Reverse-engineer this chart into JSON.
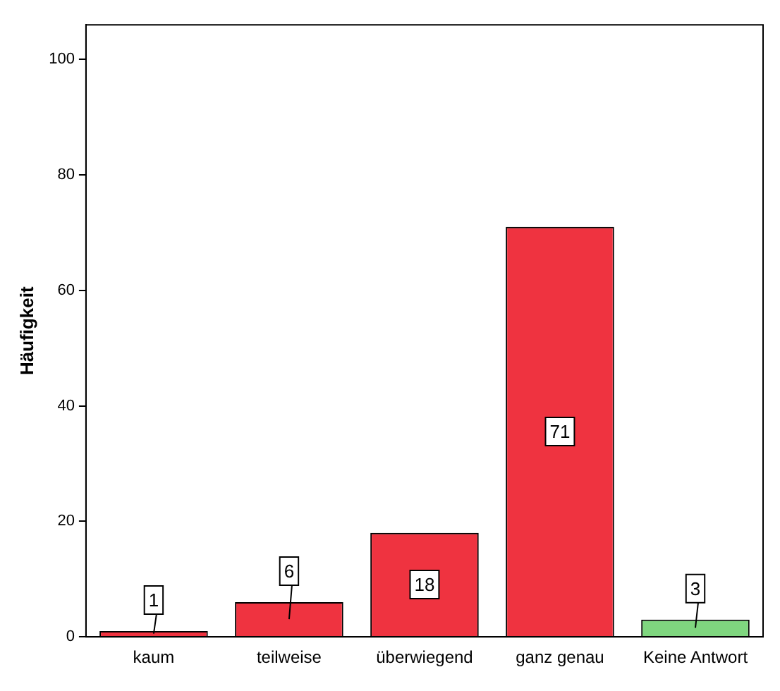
{
  "chart_data": {
    "type": "bar",
    "ylabel": "Häufigkeit",
    "categories": [
      "kaum",
      "teilweise",
      "überwiegend",
      "ganz genau",
      "Keine Antwort"
    ],
    "values": [
      1,
      6,
      18,
      71,
      3
    ],
    "colors": [
      "#ef3340",
      "#ef3340",
      "#ef3340",
      "#ef3340",
      "#7fd67f"
    ],
    "ylim": [
      0,
      106
    ],
    "yticks": [
      0,
      20,
      40,
      60,
      80,
      100
    ],
    "grid": false,
    "legend": false,
    "data_labels": true
  }
}
